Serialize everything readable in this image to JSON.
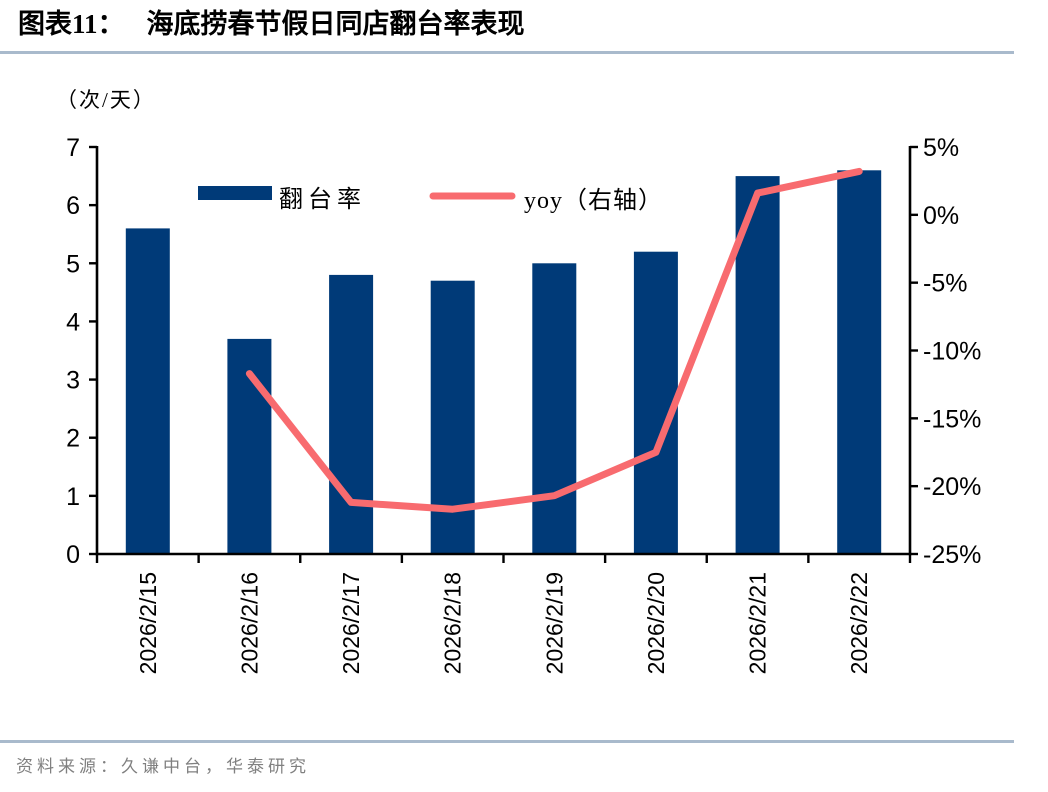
{
  "figure": {
    "label": "图表11：",
    "title": "海底捞春节假日同店翻台率表现",
    "unit_label": "（次/天）",
    "source": "资料来源：久谦中台，华泰研究"
  },
  "chart_data": {
    "type": "bar+line combo",
    "title": "海底捞春节假日同店翻台率表现",
    "categories": [
      "2026/2/15",
      "2026/2/16",
      "2026/2/17",
      "2026/2/18",
      "2026/2/19",
      "2026/2/20",
      "2026/2/21",
      "2026/2/22"
    ],
    "series": [
      {
        "name": "翻台率",
        "type": "bar",
        "axis": "left",
        "color": "#003a78",
        "values": [
          5.6,
          3.7,
          4.8,
          4.7,
          5.0,
          5.2,
          6.5,
          6.6
        ]
      },
      {
        "name": "yoy（右轴）",
        "type": "line",
        "axis": "right",
        "color": "#f86b6f",
        "values": [
          null,
          -11.7,
          -21.2,
          -21.7,
          -20.7,
          -17.5,
          1.6,
          3.2
        ]
      }
    ],
    "left_axis": {
      "label": "（次/天）",
      "min": 0,
      "max": 7,
      "ticks": [
        {
          "v": 0,
          "t": "0"
        },
        {
          "v": 1,
          "t": "1"
        },
        {
          "v": 2,
          "t": "2"
        },
        {
          "v": 3,
          "t": "3"
        },
        {
          "v": 4,
          "t": "4"
        },
        {
          "v": 5,
          "t": "5"
        },
        {
          "v": 6,
          "t": "6"
        },
        {
          "v": 7,
          "t": "7"
        }
      ]
    },
    "right_axis": {
      "label": "%",
      "min": -25,
      "max": 5,
      "ticks": [
        {
          "v": 5,
          "t": "5%"
        },
        {
          "v": 0,
          "t": "0%"
        },
        {
          "v": -5,
          "t": "-5%"
        },
        {
          "v": -10,
          "t": "-10%"
        },
        {
          "v": -15,
          "t": "-15%"
        },
        {
          "v": -20,
          "t": "-20%"
        },
        {
          "v": -25,
          "t": "-25%"
        }
      ]
    },
    "legend": {
      "position": "top-inside",
      "items": [
        {
          "label": "翻台率",
          "swatch": "bar"
        },
        {
          "label": "yoy（右轴）",
          "swatch": "line"
        }
      ]
    },
    "grid": false
  },
  "colors": {
    "bar": "#003a78",
    "line": "#f86b6f",
    "rule": "#a9bacc",
    "source_text": "#808080",
    "axis": "#000000"
  }
}
